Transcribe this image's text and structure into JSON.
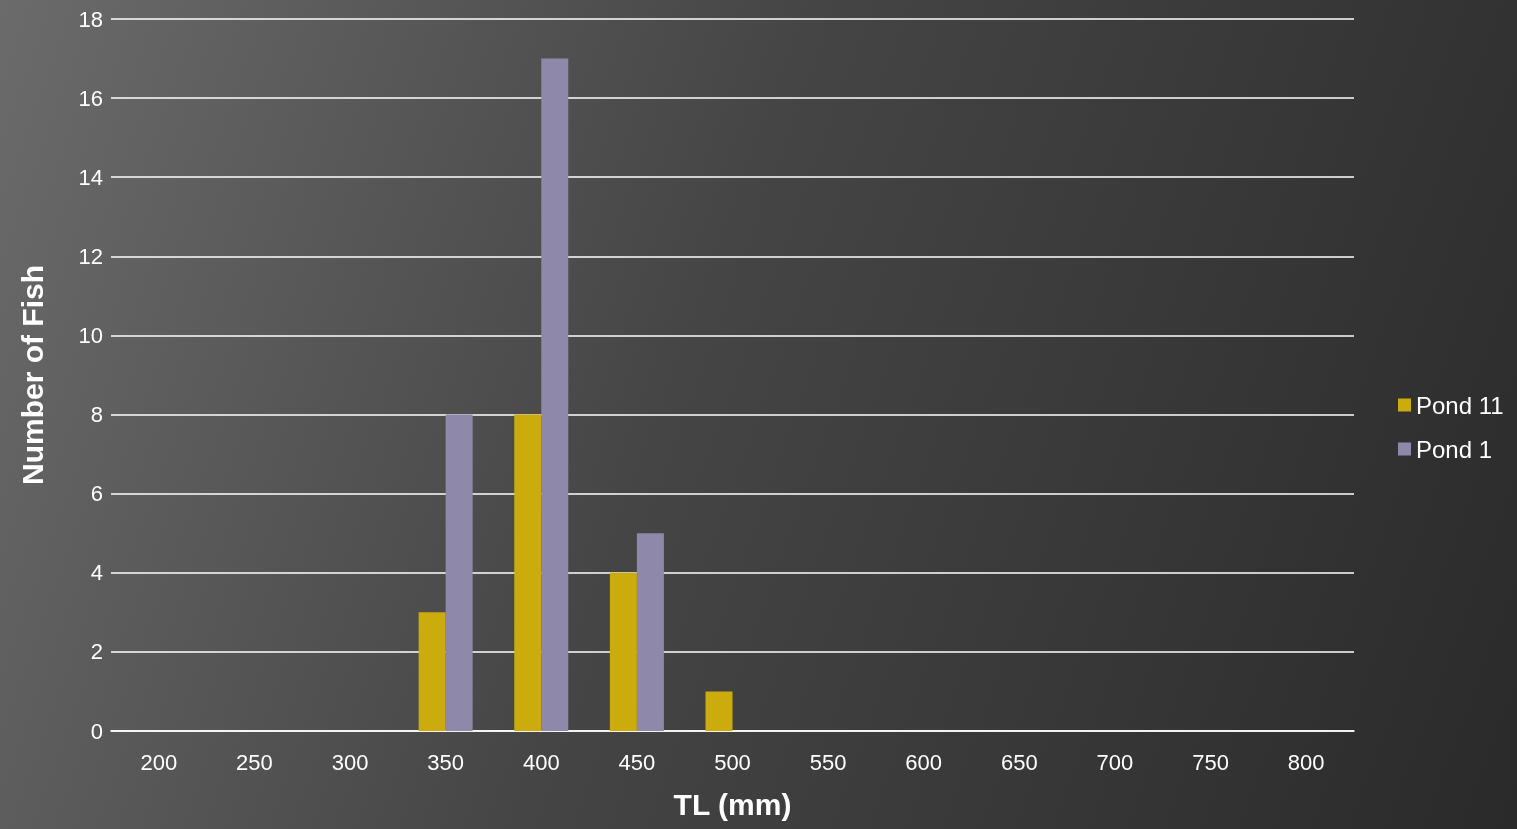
{
  "chart_data": {
    "type": "bar",
    "xlabel": "TL (mm)",
    "ylabel": "Number of Fish",
    "categories": [
      "200",
      "250",
      "300",
      "350",
      "400",
      "450",
      "500",
      "550",
      "600",
      "650",
      "700",
      "750",
      "800"
    ],
    "series": [
      {
        "name": "Pond 11",
        "color": "#ccac0c",
        "values": [
          0,
          0,
          0,
          3,
          8,
          4,
          1,
          0,
          0,
          0,
          0,
          0,
          0
        ]
      },
      {
        "name": "Pond 1",
        "color": "#8e89aa",
        "values": [
          0,
          0,
          0,
          8,
          17,
          5,
          0,
          0,
          0,
          0,
          0,
          0,
          0
        ]
      }
    ],
    "ylim": [
      0,
      18
    ],
    "yticks": [
      0,
      2,
      4,
      6,
      8,
      10,
      12,
      14,
      16,
      18
    ],
    "grid": "y",
    "legend": "right"
  }
}
